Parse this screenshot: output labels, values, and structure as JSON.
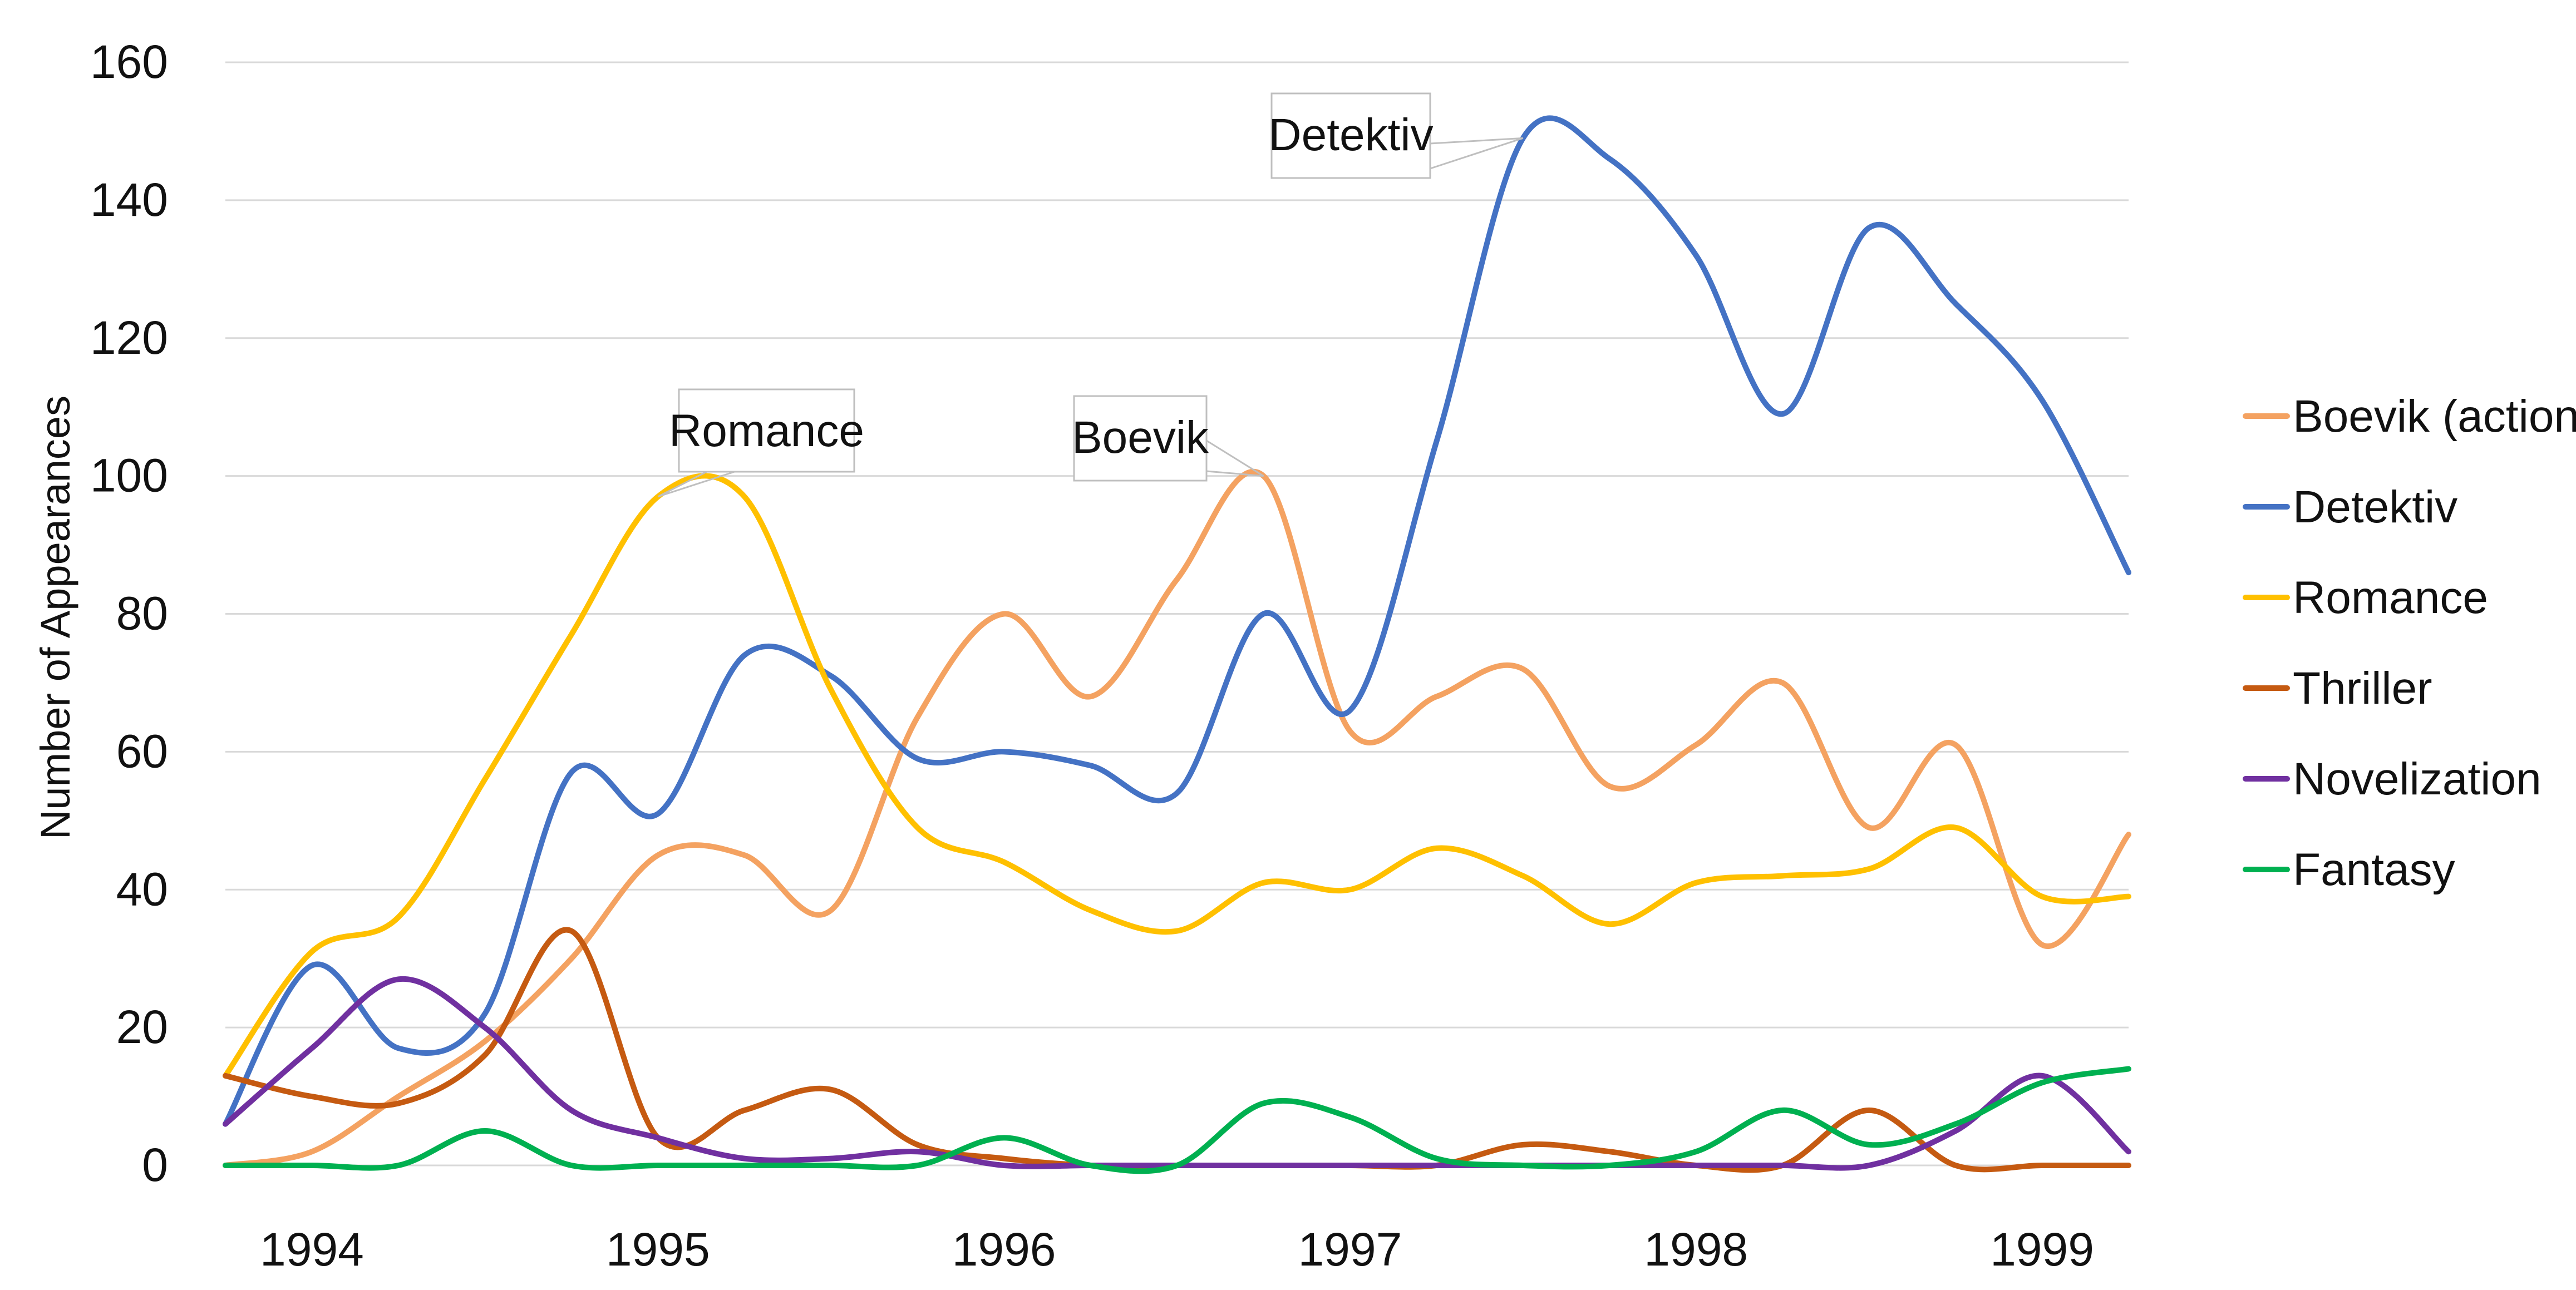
{
  "chart_data": {
    "type": "line",
    "title": "",
    "xlabel": "",
    "ylabel": "Number of Appearances",
    "ylim": [
      0,
      160
    ],
    "yticks": [
      0,
      20,
      40,
      60,
      80,
      100,
      120,
      140,
      160
    ],
    "xlim": [
      1993.75,
      1999.25
    ],
    "xticks": [
      1994,
      1995,
      1996,
      1997,
      1998,
      1999
    ],
    "grid": true,
    "legend_position": "right",
    "x": [
      1993.75,
      1994.0,
      1994.25,
      1994.5,
      1994.75,
      1995.0,
      1995.25,
      1995.5,
      1995.75,
      1996.0,
      1996.25,
      1996.5,
      1996.75,
      1997.0,
      1997.25,
      1997.5,
      1997.75,
      1998.0,
      1998.25,
      1998.5,
      1998.75,
      1999.0,
      1999.25
    ],
    "series": [
      {
        "name": "Boevik (action)",
        "color": "#F4A261",
        "values": [
          0,
          2,
          10,
          18,
          30,
          45,
          45,
          37,
          65,
          80,
          68,
          85,
          100,
          63,
          68,
          72,
          55,
          61,
          70,
          49,
          61,
          32,
          48
        ]
      },
      {
        "name": "Detektiv",
        "color": "#4472C4",
        "values": [
          6,
          29,
          17,
          22,
          57,
          51,
          74,
          71,
          59,
          60,
          58,
          54,
          80,
          66,
          105,
          149,
          146,
          132,
          109,
          136,
          125,
          111,
          86
        ]
      },
      {
        "name": "Romance",
        "color": "#FFC000",
        "values": [
          13,
          31,
          36,
          56,
          77,
          97,
          97,
          69,
          49,
          44,
          37,
          34,
          41,
          40,
          46,
          42,
          35,
          41,
          42,
          43,
          49,
          39,
          39
        ]
      },
      {
        "name": "Thriller",
        "color": "#C55A11",
        "values": [
          13,
          10,
          9,
          16,
          34,
          4,
          8,
          11,
          3,
          1,
          0,
          0,
          0,
          0,
          0,
          3,
          2,
          0,
          0,
          8,
          0,
          0,
          0
        ]
      },
      {
        "name": "Novelization",
        "color": "#7030A0",
        "values": [
          6,
          17,
          27,
          20,
          8,
          4,
          1,
          1,
          2,
          0,
          0,
          0,
          0,
          0,
          0,
          0,
          0,
          0,
          0,
          0,
          5,
          13,
          2
        ]
      },
      {
        "name": "Fantasy",
        "color": "#00B050",
        "values": [
          0,
          0,
          0,
          5,
          0,
          0,
          0,
          0,
          0,
          4,
          0,
          0,
          9,
          7,
          1,
          0,
          0,
          2,
          8,
          3,
          6,
          12,
          14
        ]
      }
    ],
    "annotations": [
      {
        "label": "Romance",
        "series": "Romance",
        "x": 1995.0,
        "y": 97,
        "placement": "above-right"
      },
      {
        "label": "Boevik",
        "series": "Boevik (action)",
        "x": 1996.75,
        "y": 100,
        "placement": "left"
      },
      {
        "label": "Detektiv",
        "series": "Detektiv",
        "x": 1997.5,
        "y": 149,
        "placement": "left"
      }
    ]
  }
}
